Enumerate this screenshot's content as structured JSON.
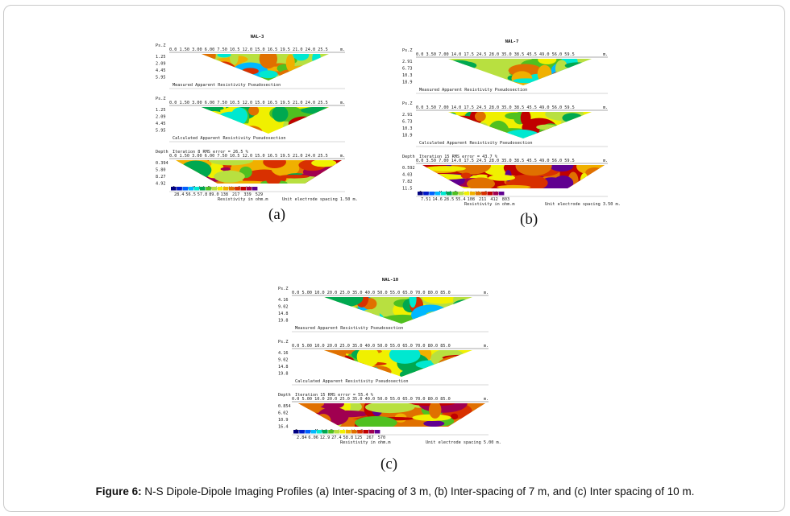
{
  "figure": {
    "caption_label": "Figure 6:",
    "caption_text": " N-S Dipole-Dipole Imaging Profiles (a) Inter-spacing of 3 m, (b) Inter-spacing of 7 m, and (c) Inter spacing of 10 m."
  },
  "common": {
    "ps_label": "Ps.Z",
    "depth_label": "Depth",
    "unit_m": "m.",
    "measured_title": "Measured Apparent Resistivity Pseudosection",
    "calculated_title": "Calculated Apparent Resistivity Pseudosection",
    "inverse_title": "Inverse Model Resistivity Section",
    "resistivity_unit": "Resistivity in ohm.m"
  },
  "panels": [
    {
      "id": "a",
      "label": "(a)",
      "line": "NAL-3",
      "x_ticks": "0.0  1.50 3.00      6.00 7.50      10.5 12.0      15.0 16.5      19.5 21.0      24.0 25.5",
      "pseudo_depths": [
        "1.25",
        "2.09",
        "4.45",
        "5.95"
      ],
      "model_depths": [
        "0.394",
        "5.80",
        "8.27",
        "4.92"
      ],
      "iteration": "Iteration 8 RMS error = 26.5 %",
      "legend_values": [
        "28.4",
        "56.5",
        "57.8",
        "89.0",
        "138",
        "217",
        "339",
        "529"
      ],
      "spacing": "Unit electrode spacing 1.50 m."
    },
    {
      "id": "b",
      "label": "(b)",
      "line": "NAL-7",
      "x_ticks": "0.0  3.50 7.00      14.0 17.5      24.5 28.0      35.0 38.5      45.5 49.0      56.0 59.5",
      "pseudo_depths": [
        "2.91",
        "6.73",
        "10.3",
        "18.9"
      ],
      "model_depths": [
        "0.592",
        "4.03",
        "7.82",
        "11.5"
      ],
      "iteration": "Iteration 15 RMS error = 43.7 %",
      "legend_values": [
        "7.51",
        "14.6",
        "28.5",
        "55.4",
        "108",
        "211",
        "412",
        "803"
      ],
      "spacing": "Unit electrode spacing 3.50 m."
    },
    {
      "id": "c",
      "label": "(c)",
      "line": "NAL-10",
      "x_ticks": "0.0  5.00 10.0      20.0 25.0      35.0 40.0      50.0 55.0      65.0 70.0      80.0 85.0",
      "pseudo_depths": [
        "4.16",
        "9.02",
        "14.8",
        "19.8"
      ],
      "model_depths": [
        "0.854",
        "6.02",
        "10.9",
        "16.4"
      ],
      "iteration": "Iteration 15 RMS error = 55.4 %",
      "legend_values": [
        "2.84",
        "6.06",
        "12.9",
        "27.4",
        "58.8",
        "125",
        "267",
        "570"
      ],
      "spacing": "Unit electrode spacing 5.00 m."
    }
  ],
  "palette": [
    "#000080",
    "#0018c8",
    "#0060ff",
    "#00b8ff",
    "#00e8d0",
    "#00a850",
    "#50c020",
    "#b8e040",
    "#f0f000",
    "#f0b000",
    "#e07000",
    "#d83000",
    "#c00000",
    "#a00050",
    "#600090"
  ]
}
